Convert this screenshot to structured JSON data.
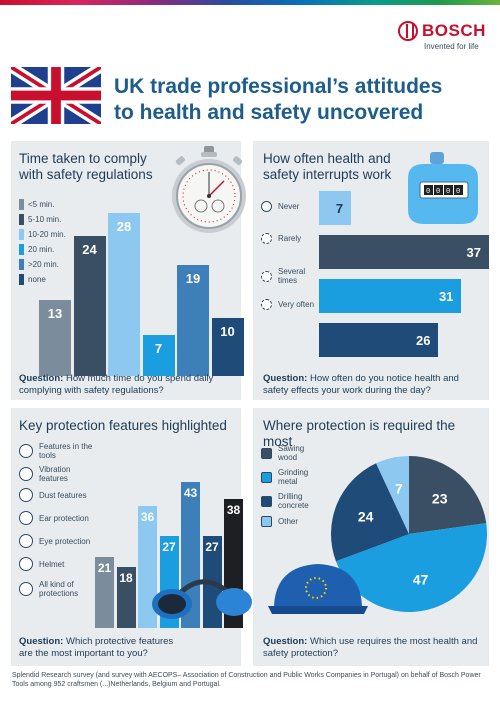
{
  "brand": {
    "name": "BOSCH",
    "tagline": "Invented for life"
  },
  "title": "UK trade professional’s attitudes to health and safety uncovered",
  "colors": {
    "c1": "#7b8d9c",
    "c2": "#3a4f63",
    "c3": "#8cc8ef",
    "c4": "#1a9ee0",
    "c5": "#3d7fb8",
    "c6": "#1e4b78",
    "black": "#1e1f22",
    "panel": "#e8ecef"
  },
  "panels": {
    "time": {
      "title": "Time taken to comply with safety regulations",
      "legend": [
        "<5 min.",
        "5-10 min.",
        "10-20 min.",
        "20 min.",
        ">20 min.",
        "none"
      ],
      "question_label": "Question:",
      "question_text": "How much time do you spend daily complying with safety regulations?"
    },
    "interrupt": {
      "title": "How often health and safety interrupts work",
      "legend": [
        "Never",
        "Rarely",
        "Several times",
        "Very often"
      ],
      "question_label": "Question:",
      "question_text": "How often do you notice health and safety effects your work during the day?"
    },
    "features": {
      "title": "Key protection features highlighted",
      "legend": [
        "Features in the tools",
        "Vibration features",
        "Dust features",
        "Ear protection",
        "Eye protection",
        "Helmet",
        "All kind of protections"
      ],
      "question_label": "Question:",
      "question_text": "Which protective features are the most important to you?"
    },
    "where": {
      "title": "Where protection is required the most",
      "legend": [
        "Sawing wood",
        "Grinding metal",
        "Drilling concrete",
        "Other"
      ],
      "question_label": "Question:",
      "question_text": "Which use requires the most health and safety protection?"
    }
  },
  "chart_data": [
    {
      "type": "bar",
      "title": "Time taken to comply with safety regulations",
      "categories": [
        "<5 min.",
        "5-10 min.",
        "10-20 min.",
        "20 min.",
        ">20 min.",
        "none"
      ],
      "values": [
        13,
        24,
        28,
        7,
        19,
        10
      ],
      "colors": [
        "#7b8d9c",
        "#3a4f63",
        "#8cc8ef",
        "#1a9ee0",
        "#3d7fb8",
        "#1e4b78"
      ],
      "labels": [
        "13",
        "24",
        "28",
        "7",
        "19",
        "10"
      ]
    },
    {
      "type": "bar",
      "orientation": "horizontal",
      "title": "How often health and safety interrupts work",
      "categories": [
        "Never",
        "Rarely",
        "Several times",
        "Very often"
      ],
      "values": [
        7,
        37,
        31,
        26
      ],
      "colors": [
        "#8cc8ef",
        "#3a4f63",
        "#1a9ee0",
        "#1e4b78"
      ],
      "labels": [
        "7",
        "37",
        "31",
        "26"
      ]
    },
    {
      "type": "bar",
      "title": "Key protection features highlighted",
      "categories": [
        "Features in the tools",
        "Vibration features",
        "Dust features",
        "Ear protection",
        "Eye protection",
        "Helmet",
        "All kind of protections"
      ],
      "values": [
        21,
        18,
        36,
        27,
        43,
        27,
        38
      ],
      "colors": [
        "#7b8d9c",
        "#3a4f63",
        "#8cc8ef",
        "#1a9ee0",
        "#3d7fb8",
        "#1e4b78",
        "#1e1f22"
      ],
      "labels": [
        "21",
        "18",
        "36",
        "27",
        "43",
        "27",
        "38"
      ]
    },
    {
      "type": "pie",
      "title": "Where protection is required the most",
      "categories": [
        "Sawing wood",
        "Grinding metal",
        "Drilling concrete",
        "Other"
      ],
      "values": [
        23,
        47,
        24,
        7
      ],
      "colors": [
        "#3a4f63",
        "#1a9ee0",
        "#1e4b78",
        "#8cc8ef"
      ],
      "labels": [
        "23",
        "47",
        "24",
        "7"
      ]
    }
  ],
  "footer": "Splendid Research survey (and survey with AECOPS– Association of Construction and Public Works Companies in Portugal) on behalf of Bosch Power Tools among 952 craftsmen (...)Netherlands, Belgium and Portugal."
}
